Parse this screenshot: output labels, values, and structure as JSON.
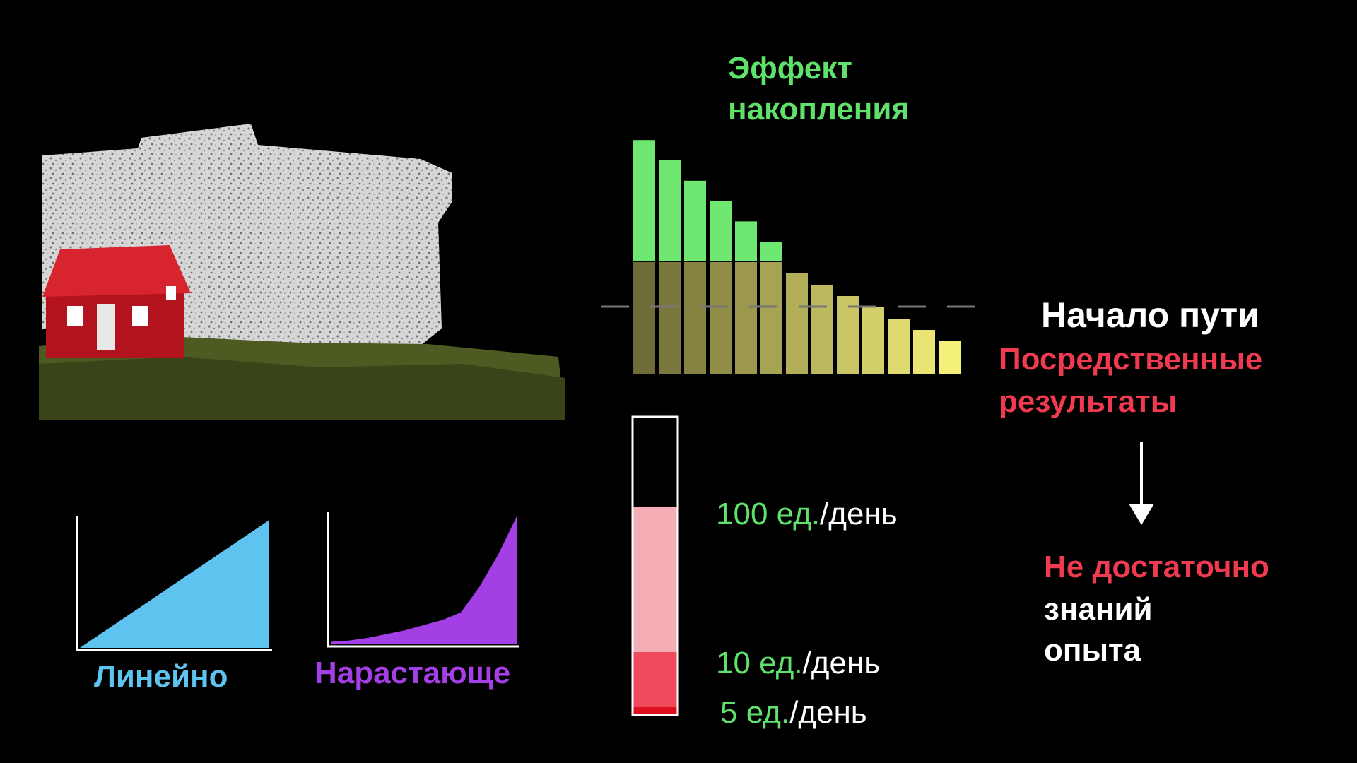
{
  "colors": {
    "green_label": "#5fe16b",
    "red_label": "#ef3a4f",
    "linear_fill": "#5fc3f0",
    "compound_fill": "#a43fe6",
    "bar_yellow": "#f5f07a",
    "bar_green": "#6fe872",
    "pink": "#f6aeb6",
    "rose": "#ef4a5c",
    "deep_red": "#dd1020"
  },
  "icons": [
    "house-illustration",
    "down-arrow-icon"
  ],
  "stack_bars": {
    "title_line1": "Эффект",
    "title_line2": "накопления",
    "base_values": [
      10,
      10,
      10,
      10,
      10,
      10,
      9,
      8,
      7,
      6,
      5,
      4,
      3
    ],
    "accumulation_values": [
      6,
      5,
      4,
      3,
      2,
      1,
      0,
      0,
      0,
      0,
      0,
      0,
      0
    ],
    "start_label": "Начало пути"
  },
  "results": {
    "line1": "Посредственные",
    "line2": "результаты",
    "not_enough": "Не достаточно",
    "knowledge": "знаний",
    "experience": "опыта"
  },
  "scale": {
    "levels": [
      {
        "value": "100 ед.",
        "unit": "/день"
      },
      {
        "value": "10 ед.",
        "unit": "/день"
      },
      {
        "value": "5 ед.",
        "unit": "/день"
      }
    ]
  },
  "charts": {
    "linear_label": "Линейно",
    "compound_label": "Нарастающе"
  },
  "chart_data": [
    {
      "type": "area",
      "title": "Линейно",
      "x": [
        0,
        1,
        2,
        3,
        4,
        5,
        6,
        7,
        8,
        9,
        10
      ],
      "values": [
        0,
        10,
        20,
        30,
        40,
        50,
        60,
        70,
        80,
        90,
        100
      ],
      "xlabel": "",
      "ylabel": ""
    },
    {
      "type": "area",
      "title": "Нарастающе",
      "x": [
        0,
        1,
        2,
        3,
        4,
        5,
        6,
        7,
        8,
        9,
        10
      ],
      "values": [
        2,
        3,
        5,
        8,
        11,
        15,
        19,
        25,
        45,
        70,
        100
      ],
      "xlabel": "",
      "ylabel": ""
    }
  ]
}
